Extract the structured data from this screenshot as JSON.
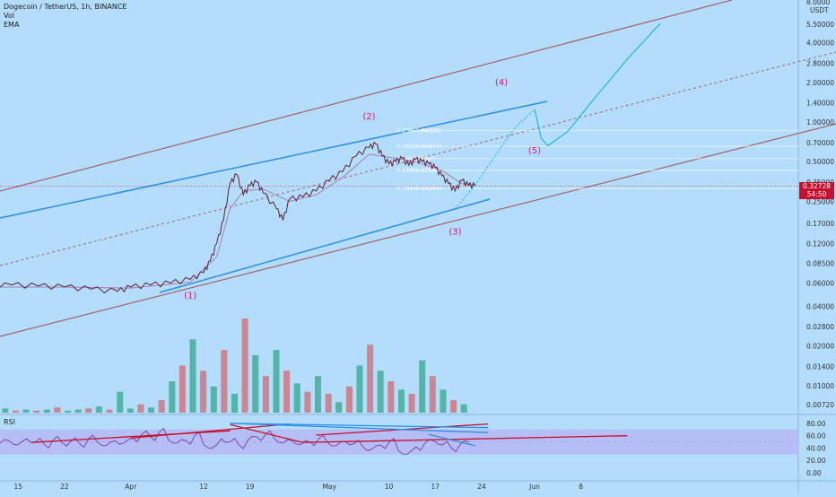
{
  "legend": {
    "title": "Dogecoin / TetherUS, 1h, BINANCE",
    "vol": "Vol",
    "ema": "EMA"
  },
  "rsi_label": "RSI",
  "price_badge": {
    "price": "0.32728",
    "countdown": "54:50"
  },
  "colors": {
    "background": "#b4dcfb",
    "channel_brown": "#a0595b",
    "channel_blue": "#2a8ee6",
    "price_line": "#5a2230",
    "projection": "#18b5c9",
    "wave_label": "#d8137a",
    "rsi_line": "#7a3aa8",
    "rsi_band": "#b6b8f5",
    "trend_red": "#c8102e",
    "volume_green": "#2aa383",
    "volume_red": "#d2616a"
  },
  "chart_data": [
    {
      "type": "line",
      "title": "Dogecoin / TetherUS, 1h, BINANCE",
      "y_scale": "log",
      "y_unit": "USDT",
      "y_tick_labels": [
        "5.50000",
        "4.00000",
        "2.80000",
        "2.00000",
        "1.40000",
        "1.00000",
        "0.70000",
        "0.50000",
        "0.35000",
        "0.25000",
        "0.17000",
        "0.12000",
        "0.08500",
        "0.06000",
        "0.04000",
        "0.02800",
        "0.02000",
        "0.01400",
        "0.01000",
        "0.00720"
      ],
      "y_top_label": "USDT",
      "y_top_cut_label": "8.0000",
      "x_tick_labels": [
        "15",
        "22",
        "Apr",
        "12",
        "19",
        "May",
        "10",
        "17",
        "24",
        "Jun",
        "8"
      ],
      "series": [
        {
          "name": "Dogecoin / TetherUS",
          "points": [
            [
              "Mar 10",
              0.056
            ],
            [
              "Mar 14",
              0.058
            ],
            [
              "Mar 18",
              0.057
            ],
            [
              "Mar 22",
              0.056
            ],
            [
              "Mar 26",
              0.054
            ],
            [
              "Mar 30",
              0.052
            ],
            [
              "Apr 1",
              0.056
            ],
            [
              "Apr 4",
              0.058
            ],
            [
              "Apr 7",
              0.06
            ],
            [
              "Apr 10",
              0.064
            ],
            [
              "Apr 12",
              0.072
            ],
            [
              "Apr 13",
              0.088
            ],
            [
              "Apr 14",
              0.12
            ],
            [
              "Apr 15",
              0.18
            ],
            [
              "Apr 16",
              0.34
            ],
            [
              "Apr 17",
              0.4
            ],
            [
              "Apr 18",
              0.28
            ],
            [
              "Apr 19",
              0.33
            ],
            [
              "Apr 20",
              0.35
            ],
            [
              "Apr 21",
              0.29
            ],
            [
              "Apr 23",
              0.22
            ],
            [
              "Apr 24",
              0.18
            ],
            [
              "Apr 25",
              0.26
            ],
            [
              "Apr 27",
              0.27
            ],
            [
              "Apr 29",
              0.3
            ],
            [
              "May 1",
              0.36
            ],
            [
              "May 3",
              0.42
            ],
            [
              "May 5",
              0.55
            ],
            [
              "May 7",
              0.64
            ],
            [
              "May 8",
              0.68
            ],
            [
              "May 9",
              0.55
            ],
            [
              "May 10",
              0.48
            ],
            [
              "May 11",
              0.5
            ],
            [
              "May 12",
              0.53
            ],
            [
              "May 13",
              0.47
            ],
            [
              "May 14",
              0.52
            ],
            [
              "May 15",
              0.5
            ],
            [
              "May 16",
              0.48
            ],
            [
              "May 17",
              0.45
            ],
            [
              "May 18",
              0.39
            ],
            [
              "May 19",
              0.34
            ],
            [
              "May 20",
              0.3
            ],
            [
              "May 21",
              0.36
            ],
            [
              "May 22",
              0.33
            ],
            [
              "May 23",
              0.33
            ]
          ]
        },
        {
          "name": "EMA",
          "points": [
            [
              "Mar 10",
              0.056
            ],
            [
              "Mar 22",
              0.056
            ],
            [
              "Apr 1",
              0.055
            ],
            [
              "Apr 10",
              0.061
            ],
            [
              "Apr 14",
              0.095
            ],
            [
              "Apr 16",
              0.22
            ],
            [
              "Apr 18",
              0.3
            ],
            [
              "Apr 21",
              0.31
            ],
            [
              "Apr 25",
              0.25
            ],
            [
              "Apr 29",
              0.28
            ],
            [
              "May 3",
              0.38
            ],
            [
              "May 7",
              0.57
            ],
            [
              "May 10",
              0.54
            ],
            [
              "May 14",
              0.5
            ],
            [
              "May 18",
              0.43
            ],
            [
              "May 21",
              0.34
            ],
            [
              "May 23",
              0.33
            ]
          ]
        },
        {
          "name": "Projection",
          "points": [
            [
              "May 23",
              0.33
            ],
            [
              "May 26",
              0.55
            ],
            [
              "May 29",
              0.9
            ],
            [
              "Jun 1",
              1.25
            ],
            [
              "Jun 2",
              0.75
            ],
            [
              "Jun 3",
              0.66
            ],
            [
              "Jun 6",
              0.85
            ],
            [
              "Jun 10",
              1.5
            ],
            [
              "Jun 15",
              3.0
            ],
            [
              "Jun 20",
              5.6
            ]
          ]
        }
      ],
      "annotations": [
        {
          "text": "(1)",
          "date": "Apr 10",
          "price": 0.046
        },
        {
          "text": "(2)",
          "date": "May 7",
          "price": 1.05
        },
        {
          "text": "(3)",
          "date": "May 20",
          "price": 0.14
        },
        {
          "text": "(4)",
          "date": "May 27",
          "price": 1.9
        },
        {
          "text": "(5)",
          "date": "Jun 1",
          "price": 0.58
        }
      ],
      "fibonacci": [
        {
          "label": "0.236(0.86438)",
          "price": 0.864
        },
        {
          "label": "0.382(0.65417)",
          "price": 0.654
        },
        {
          "label": "0.5(0.52802)",
          "price": 0.528
        },
        {
          "label": "0.618(0.42982)",
          "price": 0.43
        },
        {
          "label": "0.786(0.31254)",
          "price": 0.313
        }
      ],
      "current_price": 0.32728,
      "countdown": "54:50"
    },
    {
      "type": "line",
      "title": "RSI",
      "y_tick_labels": [
        "80.00",
        "60.00",
        "40.00",
        "20.00",
        "0.00"
      ],
      "ylim": [
        0,
        90
      ],
      "band": [
        30,
        70
      ],
      "series": [
        {
          "name": "RSI",
          "values": [
            48,
            52,
            45,
            55,
            50,
            46,
            53,
            49,
            51,
            47,
            55,
            50,
            44,
            52,
            48,
            56,
            62,
            58,
            66,
            54,
            48,
            52,
            60,
            46,
            40,
            55,
            50,
            45,
            53,
            58,
            62,
            55,
            48,
            52,
            46,
            50,
            55,
            49,
            44,
            51,
            47,
            42,
            38,
            45,
            50,
            36,
            30,
            42,
            48,
            52,
            45,
            40,
            46,
            50
          ]
        }
      ],
      "trendlines": [
        {
          "color": "#c8102e",
          "from": [
            "Mar 17",
            49
          ],
          "to": [
            "Apr 16",
            68
          ]
        },
        {
          "color": "#c8102e",
          "from": [
            "Apr 1",
            56
          ],
          "to": [
            "Apr 25",
            79
          ]
        },
        {
          "color": "#c8102e",
          "from": [
            "Apr 16",
            78
          ],
          "to": [
            "Apr 27",
            49
          ]
        },
        {
          "color": "#c8102e",
          "from": [
            "Apr 27",
            49
          ],
          "to": [
            "Jun 15",
            60
          ]
        },
        {
          "color": "#c8102e",
          "from": [
            "Apr 29",
            61
          ],
          "to": [
            "May 25",
            79
          ]
        },
        {
          "color": "#2a8ee6",
          "from": [
            "Apr 16",
            80
          ],
          "to": [
            "May 25",
            73
          ]
        },
        {
          "color": "#2a8ee6",
          "from": [
            "Apr 16",
            80
          ],
          "to": [
            "May 25",
            65
          ]
        },
        {
          "color": "#2a8ee6",
          "from": [
            "May 16",
            62
          ],
          "to": [
            "May 23",
            44
          ]
        }
      ]
    },
    {
      "type": "bar",
      "title": "Vol",
      "y_unit": "relative",
      "values": [
        4,
        2,
        3,
        2,
        3,
        5,
        2,
        3,
        4,
        6,
        3,
        20,
        4,
        8,
        5,
        12,
        30,
        45,
        70,
        40,
        25,
        60,
        18,
        90,
        55,
        35,
        60,
        40,
        28,
        20,
        35,
        18,
        10,
        25,
        45,
        65,
        40,
        30,
        22,
        18,
        50,
        35,
        22,
        12,
        8
      ],
      "colors": [
        "green",
        "red",
        "green",
        "red",
        "green",
        "red",
        "green",
        "green",
        "red",
        "green",
        "red",
        "green",
        "green",
        "red",
        "green",
        "red",
        "green",
        "red",
        "green",
        "red",
        "green",
        "red",
        "green",
        "red",
        "green",
        "red",
        "green",
        "red",
        "green",
        "red",
        "green",
        "red",
        "green",
        "red",
        "green",
        "red",
        "green",
        "red",
        "green",
        "red",
        "green",
        "red",
        "green",
        "red",
        "green"
      ]
    }
  ]
}
